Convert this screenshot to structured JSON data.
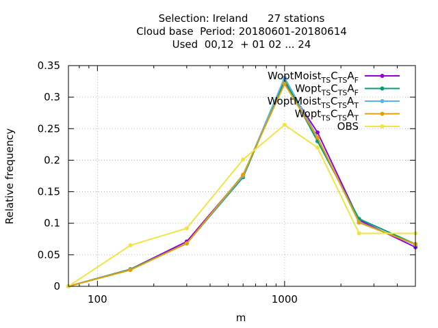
{
  "title_lines": [
    "Selection: Ireland      27 stations",
    "Cloud base  Period: 20180601-20180614",
    "Used  00,12  + 01 02 ... 24"
  ],
  "chart_data": {
    "type": "line",
    "xlabel": "m",
    "ylabel": "Relative frequency",
    "x_scale": "log",
    "xlim": [
      70,
      5000
    ],
    "ylim": [
      0,
      0.35
    ],
    "x_ticks": [
      {
        "value": 100,
        "label": "100"
      },
      {
        "value": 1000,
        "label": "1000"
      }
    ],
    "y_ticks": [
      {
        "value": 0,
        "label": "0"
      },
      {
        "value": 0.05,
        "label": "0.05"
      },
      {
        "value": 0.1,
        "label": "0.1"
      },
      {
        "value": 0.15,
        "label": "0.15"
      },
      {
        "value": 0.2,
        "label": "0.2"
      },
      {
        "value": 0.25,
        "label": "0.25"
      },
      {
        "value": 0.3,
        "label": "0.3"
      },
      {
        "value": 0.35,
        "label": "0.35"
      }
    ],
    "grid": true,
    "legend_position": "top-right",
    "x": [
      70,
      150,
      300,
      600,
      1000,
      1500,
      2500,
      5000
    ],
    "series": [
      {
        "name": "WoptMoist TS CTS A F",
        "label_base": "WoptMoist",
        "label_parts": [
          [
            "TS",
            "sub"
          ],
          [
            "C",
            ""
          ],
          [
            "TS",
            "sub"
          ],
          [
            "A",
            ""
          ],
          [
            "F",
            "sub"
          ]
        ],
        "color": "#9400d3",
        "values": [
          0,
          0.027,
          0.071,
          0.176,
          0.324,
          0.244,
          0.105,
          0.062
        ]
      },
      {
        "name": "Wopt TS CTS A F",
        "label_base": "Wopt",
        "label_parts": [
          [
            "TS",
            "sub"
          ],
          [
            "C",
            ""
          ],
          [
            "TS",
            "sub"
          ],
          [
            "A",
            ""
          ],
          [
            "F",
            "sub"
          ]
        ],
        "color": "#009e73",
        "values": [
          0,
          0.027,
          0.068,
          0.173,
          0.327,
          0.23,
          0.107,
          0.067
        ]
      },
      {
        "name": "WoptMoist TS CTS A T",
        "label_base": "WoptMoist",
        "label_parts": [
          [
            "TS",
            "sub"
          ],
          [
            "C",
            ""
          ],
          [
            "TS",
            "sub"
          ],
          [
            "A",
            ""
          ],
          [
            "T",
            "sub"
          ]
        ],
        "color": "#56b4e9",
        "values": [
          0,
          0.026,
          0.068,
          0.175,
          0.331,
          0.236,
          0.102,
          0.066
        ]
      },
      {
        "name": "Wopt TS CTS A T",
        "label_base": "Wopt",
        "label_parts": [
          [
            "TS",
            "sub"
          ],
          [
            "C",
            ""
          ],
          [
            "TS",
            "sub"
          ],
          [
            "A",
            ""
          ],
          [
            "T",
            "sub"
          ]
        ],
        "color": "#e69f00",
        "values": [
          0,
          0.026,
          0.068,
          0.177,
          0.321,
          0.236,
          0.101,
          0.067
        ]
      },
      {
        "name": "OBS",
        "label_base": "OBS",
        "label_parts": [],
        "color": "#f0e442",
        "values": [
          0,
          0.065,
          0.092,
          0.201,
          0.256,
          0.22,
          0.084,
          0.084
        ]
      }
    ]
  }
}
